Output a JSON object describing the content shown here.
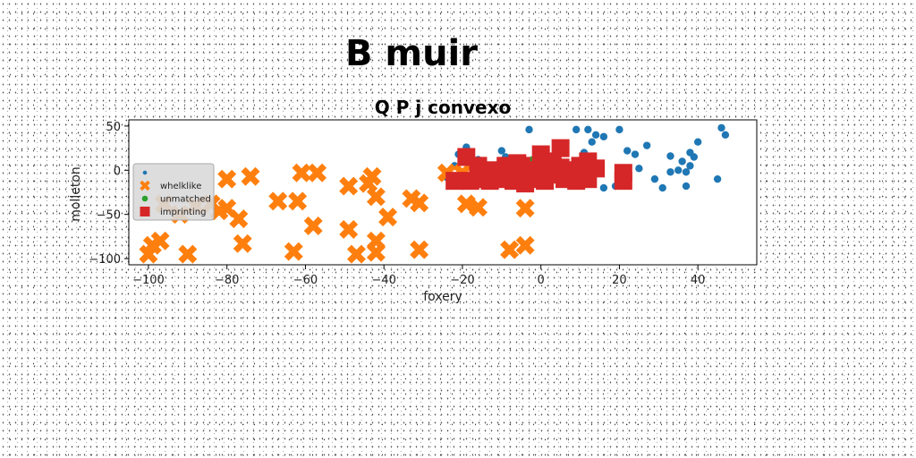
{
  "chart_data": {
    "type": "scatter",
    "suptitle": "B muir",
    "title": "Q P j convexo",
    "xlabel": "foxery",
    "ylabel": "molleton",
    "xlim": [
      -105,
      55
    ],
    "ylim": [
      -107,
      57
    ],
    "xticks": [
      -100,
      -80,
      -60,
      -40,
      -20,
      0,
      20,
      40
    ],
    "yticks": [
      50,
      0,
      -50,
      -100
    ],
    "grid": false,
    "legend_position": "center-left",
    "series": [
      {
        "name": "",
        "marker": "circle-small",
        "color": "#1f77b4",
        "points": [
          [
            -3,
            46
          ],
          [
            9,
            46
          ],
          [
            12,
            46
          ],
          [
            20,
            46
          ],
          [
            46,
            48
          ],
          [
            47,
            40
          ],
          [
            14,
            40
          ],
          [
            16,
            38
          ],
          [
            13,
            32
          ],
          [
            11,
            20
          ],
          [
            22,
            22
          ],
          [
            24,
            18
          ],
          [
            27,
            28
          ],
          [
            25,
            2
          ],
          [
            33,
            16
          ],
          [
            36,
            10
          ],
          [
            38,
            20
          ],
          [
            39,
            15
          ],
          [
            40,
            32
          ],
          [
            38,
            5
          ],
          [
            35,
            0
          ],
          [
            33,
            -2
          ],
          [
            37,
            -2
          ],
          [
            29,
            -10
          ],
          [
            31,
            -20
          ],
          [
            37,
            -18
          ],
          [
            45,
            -10
          ],
          [
            13,
            -10
          ],
          [
            16,
            -20
          ],
          [
            19,
            -18
          ],
          [
            8,
            -10
          ],
          [
            5,
            -5
          ],
          [
            -9,
            15
          ],
          [
            -10,
            22
          ],
          [
            -19,
            26
          ],
          [
            -21,
            18
          ],
          [
            -16,
            12
          ],
          [
            -22,
            5
          ],
          [
            -24,
            -8
          ],
          [
            -8,
            -12
          ],
          [
            -2,
            10
          ],
          [
            3,
            12
          ],
          [
            1,
            3
          ],
          [
            9,
            5
          ],
          [
            -5,
            4
          ],
          [
            7,
            -3
          ]
        ]
      },
      {
        "name": "whelklike",
        "marker": "x-large",
        "color": "#ff7f0e",
        "points": [
          [
            -100,
            -95
          ],
          [
            -99,
            -85
          ],
          [
            -97,
            -80
          ],
          [
            -90,
            -95
          ],
          [
            -80,
            -10
          ],
          [
            -80,
            -43
          ],
          [
            -74,
            -7
          ],
          [
            -77,
            -55
          ],
          [
            -76,
            -83
          ],
          [
            -67,
            -35
          ],
          [
            -62,
            -35
          ],
          [
            -61,
            -3
          ],
          [
            -57,
            -3
          ],
          [
            -58,
            -63
          ],
          [
            -63,
            -92
          ],
          [
            -49,
            -18
          ],
          [
            -49,
            -67
          ],
          [
            -47,
            -95
          ],
          [
            -44,
            -15
          ],
          [
            -43,
            -7
          ],
          [
            -42,
            -30
          ],
          [
            -42,
            -80
          ],
          [
            -42,
            -93
          ],
          [
            -39,
            -53
          ],
          [
            -33,
            -32
          ],
          [
            -31,
            -37
          ],
          [
            -31,
            -90
          ],
          [
            -24,
            -3
          ],
          [
            -20,
            -3
          ],
          [
            -19,
            -38
          ],
          [
            -16,
            -42
          ],
          [
            -8,
            -90
          ],
          [
            -4,
            -85
          ],
          [
            -4,
            -43
          ],
          [
            -96,
            -38
          ],
          [
            -92,
            -50
          ],
          [
            -88,
            -40
          ],
          [
            -84,
            -38
          ],
          [
            -82,
            -46
          ]
        ]
      },
      {
        "name": "unmatched",
        "marker": "circle",
        "color": "#2ca02c",
        "points": [
          [
            -5,
            12
          ],
          [
            -2,
            10
          ]
        ]
      },
      {
        "name": "imprinting",
        "marker": "square",
        "color": "#d62728",
        "points": [
          [
            -19,
            15
          ],
          [
            -18,
            -12
          ],
          [
            -22,
            -12
          ],
          [
            -14,
            -10
          ],
          [
            -12,
            0
          ],
          [
            -10,
            -10
          ],
          [
            -9,
            5
          ],
          [
            -8,
            -5
          ],
          [
            -7,
            -12
          ],
          [
            -5,
            0
          ],
          [
            -5,
            5
          ],
          [
            -4,
            -15
          ],
          [
            -3,
            0
          ],
          [
            -2,
            -10
          ],
          [
            0,
            18
          ],
          [
            0,
            5
          ],
          [
            0,
            -5
          ],
          [
            1,
            -12
          ],
          [
            2,
            0
          ],
          [
            3,
            10
          ],
          [
            4,
            -5
          ],
          [
            5,
            25
          ],
          [
            5,
            3
          ],
          [
            6,
            -10
          ],
          [
            7,
            0
          ],
          [
            8,
            -8
          ],
          [
            10,
            5
          ],
          [
            11,
            -5
          ],
          [
            12,
            10
          ],
          [
            12,
            -10
          ],
          [
            14,
            2
          ],
          [
            9,
            -12
          ],
          [
            -16,
            5
          ],
          [
            21,
            -3
          ],
          [
            21,
            -12
          ],
          [
            -13,
            -12
          ],
          [
            -6,
            8
          ]
        ]
      }
    ]
  }
}
